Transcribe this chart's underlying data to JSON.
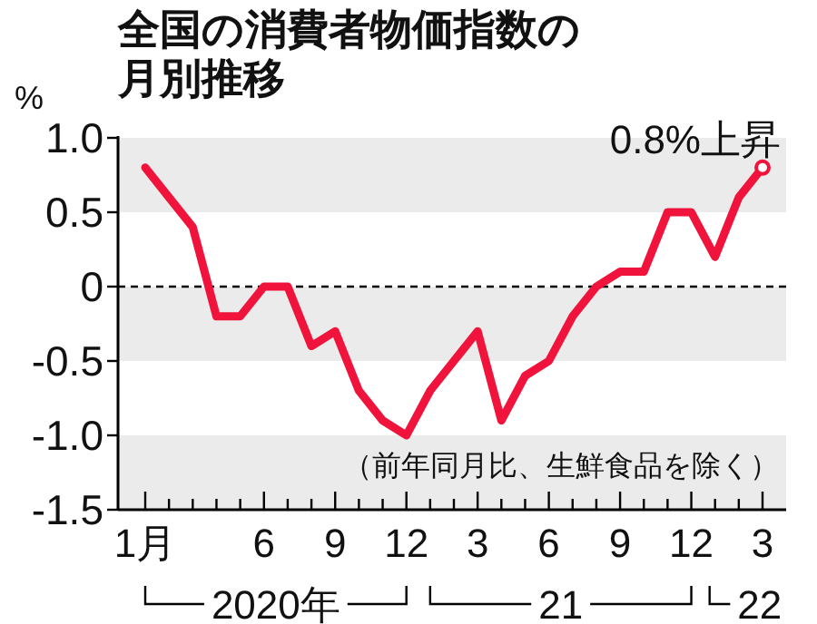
{
  "chart_data": {
    "type": "line",
    "title": "全国の消費者物価指数の月別推移",
    "ylabel": "%",
    "categories": [
      "1月",
      null,
      null,
      null,
      null,
      "6",
      null,
      null,
      "9",
      null,
      null,
      "12",
      null,
      null,
      "3",
      null,
      null,
      "6",
      null,
      null,
      "9",
      null,
      null,
      "12",
      null,
      null,
      "3"
    ],
    "series": [
      {
        "color": "#f0143c",
        "values": [
          0.8,
          0.6,
          0.4,
          -0.2,
          -0.2,
          0.0,
          0.0,
          -0.4,
          -0.3,
          -0.7,
          -0.9,
          -1.0,
          -0.7,
          -0.5,
          -0.3,
          -0.9,
          -0.6,
          -0.5,
          -0.2,
          0.0,
          0.1,
          0.1,
          0.5,
          0.5,
          0.2,
          0.6,
          0.8
        ]
      }
    ],
    "ylim": [
      -1.5,
      1.0
    ],
    "yticks": [
      {
        "value": 1.0,
        "label": "1.0"
      },
      0.5,
      0,
      -0.5,
      {
        "value": -1.0,
        "label": "-1.0"
      },
      -1.5
    ],
    "bands": [
      {
        "axis": "y",
        "from": 0.5,
        "to": 1.0,
        "color": "#ebebeb"
      },
      {
        "axis": "y",
        "from": -0.5,
        "to": 0,
        "color": "#ebebeb"
      },
      {
        "axis": "y",
        "from": -1.5,
        "to": -1.0,
        "color": "#ebebeb"
      }
    ],
    "ref_lines": [
      {
        "axis": "y",
        "value": 0,
        "line_style": "dashed",
        "color": "#000000"
      }
    ],
    "annotations": [
      "0.8%上昇",
      "（前年同月比、生鮮食品を除く）",
      "2020年",
      "21",
      "22"
    ],
    "grid": false
  }
}
